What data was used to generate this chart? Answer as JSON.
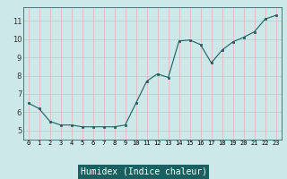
{
  "x": [
    0,
    1,
    2,
    3,
    4,
    5,
    6,
    7,
    8,
    9,
    10,
    11,
    12,
    13,
    14,
    15,
    16,
    17,
    18,
    19,
    20,
    21,
    22,
    23
  ],
  "y": [
    6.5,
    6.2,
    5.5,
    5.3,
    5.3,
    5.2,
    5.2,
    5.2,
    5.2,
    5.3,
    6.5,
    7.7,
    8.1,
    7.9,
    9.9,
    9.95,
    9.7,
    8.7,
    9.4,
    9.85,
    10.1,
    10.4,
    11.1,
    11.3
  ],
  "xlabel": "Humidex (Indice chaleur)",
  "xlim": [
    -0.5,
    23.5
  ],
  "ylim": [
    4.5,
    11.75
  ],
  "yticks": [
    5,
    6,
    7,
    8,
    9,
    10,
    11
  ],
  "xtick_labels": [
    "0",
    "1",
    "2",
    "3",
    "4",
    "5",
    "6",
    "7",
    "8",
    "9",
    "10",
    "11",
    "12",
    "13",
    "14",
    "15",
    "16",
    "17",
    "18",
    "19",
    "20",
    "21",
    "22",
    "23"
  ],
  "bg_color": "#cde8e8",
  "line_color": "#1a6060",
  "marker_color": "#1a6060",
  "hgrid_color": "#b0cccc",
  "vgrid_color": "#e8b0b0",
  "xlabel_bg": "#1a6060",
  "xlabel_fg": "#ffffff",
  "tick_color": "#333333"
}
